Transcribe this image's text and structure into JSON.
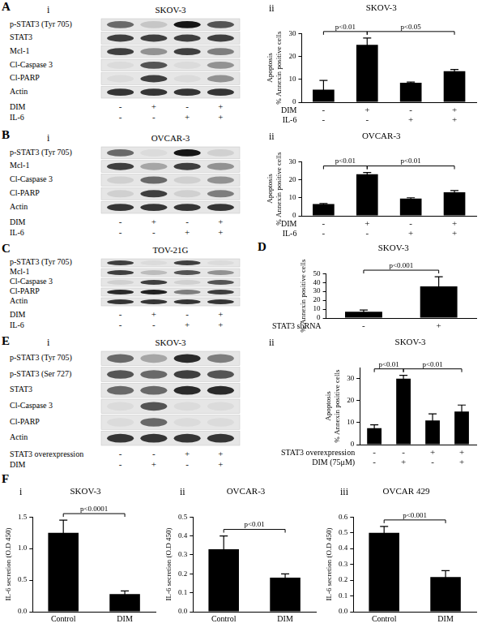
{
  "panel_labels": [
    "A",
    "B",
    "C",
    "D",
    "E",
    "F"
  ],
  "blots": [
    {
      "sub": "i",
      "title": "SKOV-3",
      "rows": [
        {
          "name": "p-STAT3 (Tyr 705)",
          "bands": [
            0.6,
            0.15,
            1,
            0.7
          ]
        },
        {
          "name": "STAT3",
          "bands": [
            0.8,
            0.8,
            0.8,
            0.8
          ]
        },
        {
          "name": "Mcl-1",
          "bands": [
            0.8,
            0.4,
            0.8,
            0.5
          ]
        },
        {
          "name": "Cl-Caspase 3",
          "bands": [
            0.05,
            0.7,
            0.05,
            0.4
          ]
        },
        {
          "name": "Cl-PARP",
          "bands": [
            0.05,
            0.8,
            0.05,
            0.4
          ]
        },
        {
          "name": "Actin",
          "bands": [
            0.85,
            0.85,
            0.85,
            0.85
          ]
        }
      ],
      "conditions": [
        {
          "name": "DIM",
          "signs": [
            "-",
            "+",
            "-",
            "+"
          ]
        },
        {
          "name": "IL-6",
          "signs": [
            "-",
            "-",
            "+",
            "+"
          ]
        }
      ]
    },
    {
      "sub": "i",
      "title": "OVCAR-3",
      "rows": [
        {
          "name": "p-STAT3 (Tyr 705)",
          "bands": [
            0.6,
            0.05,
            1,
            0.1
          ]
        },
        {
          "name": "Mcl-1",
          "bands": [
            0.8,
            0.3,
            0.8,
            0.4
          ]
        },
        {
          "name": "Cl-Caspase 3",
          "bands": [
            0.1,
            0.6,
            0.1,
            0.4
          ]
        },
        {
          "name": "Cl-PARP",
          "bands": [
            0.1,
            0.8,
            0.1,
            0.5
          ]
        },
        {
          "name": "Actin",
          "bands": [
            0.85,
            0.85,
            0.85,
            0.85
          ]
        }
      ],
      "conditions": [
        {
          "name": "DIM",
          "signs": [
            "-",
            "+",
            "-",
            "+"
          ]
        },
        {
          "name": "IL-6",
          "signs": [
            "-",
            "-",
            "+",
            "+"
          ]
        }
      ]
    },
    {
      "title": "TOV-21G",
      "rows": [
        {
          "name": "p-STAT3 (Tyr 705)",
          "bands": [
            0.8,
            0.05,
            0.8,
            0.05
          ]
        },
        {
          "name": "Mcl-1",
          "bands": [
            0.8,
            0.2,
            0.7,
            0.4
          ]
        },
        {
          "name": "Cl-Caspase 3",
          "bands": [
            0.1,
            0.8,
            0.1,
            0.7
          ]
        },
        {
          "name": "Cl-PARP",
          "bands": [
            0.9,
            0.95,
            0.5,
            0.8
          ]
        },
        {
          "name": "Actin",
          "bands": [
            0.85,
            0.85,
            0.85,
            0.85
          ]
        }
      ],
      "conditions": [
        {
          "name": "DIM",
          "signs": [
            "-",
            "+",
            "-",
            "+"
          ]
        },
        {
          "name": "IL-6",
          "signs": [
            "-",
            "-",
            "+",
            "+"
          ]
        }
      ]
    },
    {
      "sub": "i",
      "title": "SKOV-3",
      "rows": [
        {
          "name": "p-STAT3 (Tyr 705)",
          "bands": [
            0.6,
            0.3,
            0.9,
            0.5
          ]
        },
        {
          "name": "p-STAT3 (Ser 727)",
          "bands": [
            0.7,
            0.6,
            0.8,
            0.7
          ]
        },
        {
          "name": "STAT3",
          "bands": [
            0.6,
            0.6,
            0.9,
            0.9
          ]
        },
        {
          "name": "Cl-Caspase 3",
          "bands": [
            0.05,
            0.7,
            0.05,
            0.05
          ]
        },
        {
          "name": "Cl-PARP",
          "bands": [
            0.05,
            0.6,
            0.05,
            0.05
          ]
        },
        {
          "name": "Actin",
          "bands": [
            0.85,
            0.85,
            0.85,
            0.85
          ]
        }
      ],
      "conditions": [
        {
          "name": "STAT3 overexpression",
          "signs": [
            "-",
            "-",
            "+",
            "+"
          ]
        },
        {
          "name": "DIM",
          "signs": [
            "-",
            "+",
            "-",
            "+"
          ]
        }
      ]
    }
  ],
  "chart_data": [
    {
      "type": "bar",
      "sub": "ii",
      "title": "SKOV-3",
      "y_label": [
        "Apoptosis",
        "% Annexin positive cells"
      ],
      "values": [
        5.5,
        25,
        8.5,
        13.5
      ],
      "errors": [
        4,
        3,
        0.3,
        0.8
      ],
      "color": "#000000",
      "ylim": [
        0,
        30
      ],
      "yticks": [
        0,
        10,
        20,
        30
      ],
      "grid": false,
      "x_rows": [
        {
          "name": "DIM",
          "signs": [
            "-",
            "+",
            "-",
            "+"
          ]
        },
        {
          "name": "IL-6",
          "signs": [
            "-",
            "-",
            "+",
            "+"
          ]
        }
      ],
      "annotations": [
        {
          "text": "p<0.01",
          "between": [
            0,
            1
          ]
        },
        {
          "text": "p<0.05",
          "between": [
            1,
            3
          ]
        }
      ]
    },
    {
      "type": "bar",
      "sub": "ii",
      "title": "OVCAR-3",
      "y_label": [
        "Apoptosis",
        "% Annexin positive cells"
      ],
      "values": [
        6.5,
        23,
        9.5,
        13
      ],
      "errors": [
        0.3,
        1,
        0.5,
        1
      ],
      "color": "#000000",
      "ylim": [
        0,
        30
      ],
      "yticks": [
        0,
        10,
        20,
        30
      ],
      "grid": false,
      "x_rows": [
        {
          "name": "DIM",
          "signs": [
            "-",
            "+",
            "-",
            "+"
          ]
        },
        {
          "name": "IL-6",
          "signs": [
            "-",
            "-",
            "+",
            "+"
          ]
        }
      ],
      "annotations": [
        {
          "text": "p<0.01",
          "between": [
            0,
            1
          ]
        },
        {
          "text": "p<0.01",
          "between": [
            1,
            3
          ]
        }
      ]
    },
    {
      "type": "bar",
      "title": "SKOV-3",
      "y_label": [
        "% Annexin positive cells"
      ],
      "values": [
        7,
        35.5
      ],
      "errors": [
        2,
        11
      ],
      "color": "#000000",
      "ylim": [
        0,
        50
      ],
      "yticks": [
        0,
        10,
        20,
        30,
        40,
        50
      ],
      "grid": false,
      "x_rows": [
        {
          "name": "STAT3 shRNA",
          "signs": [
            "-",
            "+"
          ]
        }
      ],
      "annotations": [
        {
          "text": "p<0.001",
          "between": [
            0,
            1
          ]
        }
      ]
    },
    {
      "type": "bar",
      "sub": "ii",
      "title": "SKOV-3",
      "y_label": [
        "Apoptosis",
        "% Annexin positive cells"
      ],
      "values": [
        7.5,
        30,
        11,
        15
      ],
      "errors": [
        1.5,
        1.5,
        3,
        3
      ],
      "color": "#000000",
      "ylim": [
        0,
        35
      ],
      "yticks": [
        0,
        10,
        20,
        30
      ],
      "grid": false,
      "x_rows": [
        {
          "name": "STAT3 overexpression",
          "signs": [
            "-",
            "-",
            "+",
            "+"
          ]
        },
        {
          "name": "DIM (75μM)",
          "signs": [
            "-",
            "+",
            "-",
            "+"
          ]
        }
      ],
      "annotations": [
        {
          "text": "p<0.01",
          "between": [
            0,
            1
          ]
        },
        {
          "text": "p<0.01",
          "between": [
            1,
            3
          ]
        }
      ]
    },
    {
      "type": "bar",
      "sub": "i",
      "title": "SKOV-3",
      "y_label": [
        "IL-6 secretion (O.D 450)"
      ],
      "categories": [
        "Control",
        "DIM"
      ],
      "values": [
        1.25,
        0.28
      ],
      "errors": [
        0.2,
        0.05
      ],
      "color": "#000000",
      "ylim": [
        0,
        1.5
      ],
      "yticks": [
        {
          "value": 0,
          "label": "0.0"
        },
        0.5,
        {
          "value": 1,
          "label": "1.0"
        },
        1.5
      ],
      "grid": false,
      "annotations": [
        {
          "text": "p<0.0001",
          "between": [
            0,
            1
          ]
        }
      ]
    },
    {
      "type": "bar",
      "sub": "ii",
      "title": "OVCAR-3",
      "y_label": [
        "IL-6 secretion (O.D 450)"
      ],
      "categories": [
        "Control",
        "DIM"
      ],
      "values": [
        0.33,
        0.18
      ],
      "errors": [
        0.07,
        0.02
      ],
      "color": "#000000",
      "ylim": [
        0,
        0.5
      ],
      "yticks": [
        {
          "value": 0,
          "label": "0.0"
        },
        0.1,
        0.2,
        0.3,
        0.4,
        0.5
      ],
      "grid": false,
      "annotations": [
        {
          "text": "p<0.01",
          "between": [
            0,
            1
          ]
        }
      ]
    },
    {
      "type": "bar",
      "sub": "iii",
      "title": "OVCAR 429",
      "y_label": [
        "IL-6 secretion (O.D 450)"
      ],
      "categories": [
        "Control",
        "DIM"
      ],
      "values": [
        0.5,
        0.22
      ],
      "errors": [
        0.04,
        0.04
      ],
      "color": "#000000",
      "ylim": [
        0,
        0.6
      ],
      "yticks": [
        {
          "value": 0,
          "label": "0.0"
        },
        0.1,
        0.2,
        0.3,
        0.4,
        0.5,
        0.6
      ],
      "grid": false,
      "annotations": [
        {
          "text": "p<0.001",
          "between": [
            0,
            1
          ]
        }
      ]
    }
  ]
}
